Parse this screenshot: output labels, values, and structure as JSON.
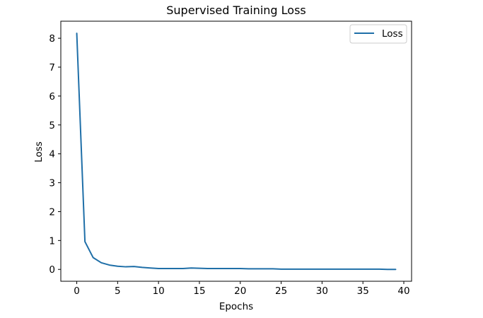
{
  "chart_data": {
    "type": "line",
    "title": "Supervised Training Loss",
    "xlabel": "Epochs",
    "ylabel": "Loss",
    "xlim": [
      -1.95,
      40.95
    ],
    "ylim": [
      -0.41,
      8.59
    ],
    "xticks": [
      0,
      5,
      10,
      15,
      20,
      25,
      30,
      35,
      40
    ],
    "yticks": [
      0,
      1,
      2,
      3,
      4,
      5,
      6,
      7,
      8
    ],
    "grid": false,
    "legend_position": "top-right",
    "colors": {
      "line": "#1f6fa8"
    },
    "series": [
      {
        "name": "Loss",
        "x": [
          0,
          1,
          2,
          3,
          4,
          5,
          6,
          7,
          8,
          9,
          10,
          11,
          12,
          13,
          14,
          15,
          16,
          17,
          18,
          19,
          20,
          21,
          22,
          23,
          24,
          25,
          26,
          27,
          28,
          29,
          30,
          31,
          32,
          33,
          34,
          35,
          36,
          37,
          38,
          39
        ],
        "y": [
          8.17,
          0.96,
          0.41,
          0.23,
          0.15,
          0.11,
          0.09,
          0.1,
          0.07,
          0.05,
          0.03,
          0.03,
          0.03,
          0.03,
          0.05,
          0.04,
          0.03,
          0.03,
          0.03,
          0.03,
          0.03,
          0.02,
          0.02,
          0.02,
          0.02,
          0.01,
          0.01,
          0.01,
          0.01,
          0.01,
          0.01,
          0.01,
          0.01,
          0.01,
          0.01,
          0.01,
          0.01,
          0.01,
          0.0,
          0.0
        ]
      }
    ]
  }
}
